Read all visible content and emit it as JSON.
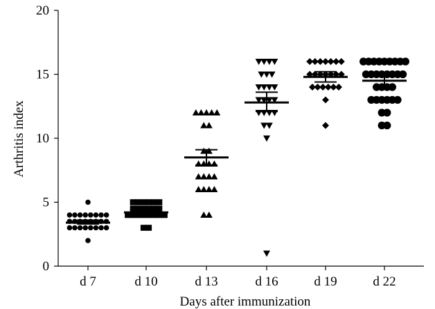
{
  "chart_data": {
    "type": "scatter",
    "title": "",
    "xlabel": "Days after immunization",
    "ylabel": "Arthritis index",
    "ylim": [
      0,
      20
    ],
    "yticks": [
      0,
      5,
      10,
      15,
      20
    ],
    "categories": [
      "d 7",
      "d 10",
      "d 13",
      "d 16",
      "d 19",
      "d 22"
    ],
    "series": [
      {
        "name": "d 7",
        "marker": "circle-small",
        "points": [
          [
            5,
            1
          ],
          [
            4,
            8
          ],
          [
            3.5,
            8
          ],
          [
            3,
            8
          ],
          [
            2,
            1
          ]
        ],
        "mean": 3.4,
        "sem": [
          3.3,
          3.6
        ]
      },
      {
        "name": "d 10",
        "marker": "square",
        "points": [
          [
            5,
            6
          ],
          [
            4.5,
            6
          ],
          [
            4,
            8
          ],
          [
            3,
            2
          ]
        ],
        "mean": 4.2,
        "sem": [
          4.1,
          4.4
        ]
      },
      {
        "name": "d 13",
        "marker": "triangle-up",
        "points": [
          [
            12,
            5
          ],
          [
            11,
            2
          ],
          [
            9,
            2
          ],
          [
            8,
            4
          ],
          [
            7,
            4
          ],
          [
            6,
            4
          ],
          [
            4,
            2
          ]
        ],
        "mean": 8.5,
        "sem": [
          7.9,
          9.1
        ]
      },
      {
        "name": "d 16",
        "marker": "triangle-down",
        "points": [
          [
            16,
            4
          ],
          [
            15,
            3
          ],
          [
            14,
            4
          ],
          [
            13,
            4
          ],
          [
            12,
            4
          ],
          [
            11,
            2
          ],
          [
            10,
            1
          ],
          [
            1,
            1
          ]
        ],
        "mean": 12.8,
        "sem": [
          12.1,
          13.6
        ]
      },
      {
        "name": "d 19",
        "marker": "diamond",
        "points": [
          [
            16,
            7
          ],
          [
            15,
            7
          ],
          [
            14,
            6
          ],
          [
            13,
            1
          ],
          [
            11,
            1
          ]
        ],
        "mean": 14.8,
        "sem": [
          14.4,
          15.2
        ]
      },
      {
        "name": "d 22",
        "marker": "circle",
        "points": [
          [
            16,
            9
          ],
          [
            15,
            8
          ],
          [
            14,
            4
          ],
          [
            13,
            6
          ],
          [
            12,
            2
          ],
          [
            11,
            2
          ]
        ],
        "mean": 14.5,
        "sem": [
          14.0,
          15.0
        ]
      }
    ]
  }
}
